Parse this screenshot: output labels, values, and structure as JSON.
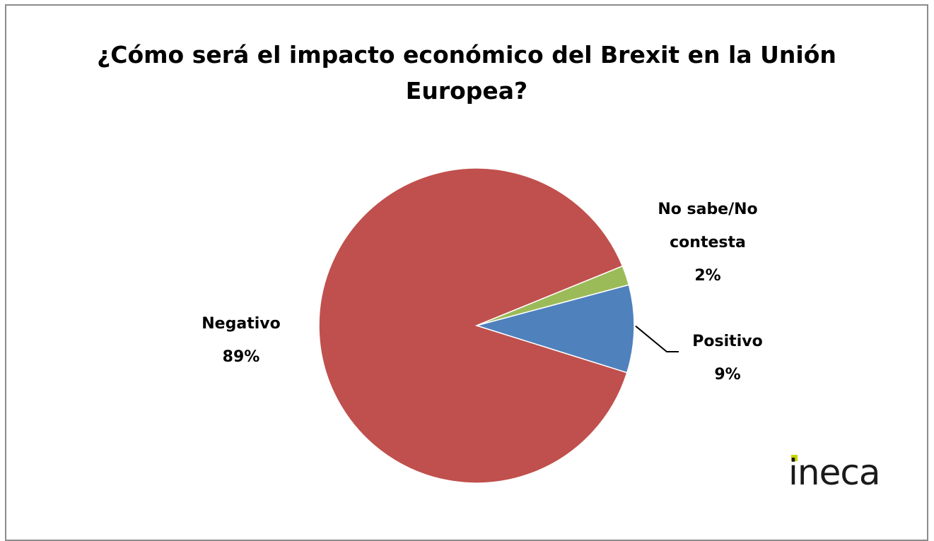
{
  "chart_data": {
    "type": "pie",
    "title": "¿Cómo será el impacto económico del Brexit en la Unión Europea?",
    "slices": [
      {
        "label": "Positivo",
        "value": 9,
        "value_label": "9%",
        "color": "#4f81bd"
      },
      {
        "label": "Negativo",
        "value": 89,
        "value_label": "89%",
        "color": "#c0504d"
      },
      {
        "label": "No sabe/No contesta",
        "value": 2,
        "value_label": "2%",
        "color": "#9bbb59"
      }
    ],
    "legend": "none",
    "data_labels": "outside, category name and percentage"
  },
  "logo": {
    "text": "ineca",
    "accent_color": "#c8d400"
  }
}
